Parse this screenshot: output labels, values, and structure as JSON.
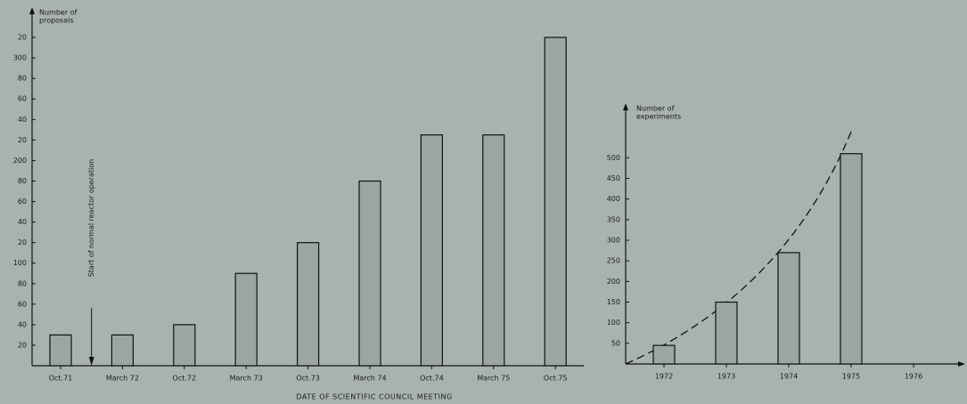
{
  "chart_data": [
    {
      "type": "bar",
      "y_label": [
        "Number of",
        "proposals"
      ],
      "x_label": "DATE OF SCIENTIFIC COUNCIL MEETING",
      "annotation": "Start of normal reactor operation",
      "categories": [
        "Oct.71",
        "March 72",
        "Oct.72",
        "March 73",
        "Oct.73",
        "March 74",
        "Oct.74",
        "March 75",
        "Oct.75"
      ],
      "values": [
        30,
        30,
        40,
        90,
        120,
        180,
        225,
        225,
        320
      ],
      "color": "#9ba6a1",
      "ylim": [
        0,
        340
      ],
      "yticks": [
        20,
        40,
        60,
        80,
        100,
        {
          "value": 120,
          "label": "20"
        },
        {
          "value": 140,
          "label": "40"
        },
        {
          "value": 160,
          "label": "60"
        },
        {
          "value": 180,
          "label": "80"
        },
        200,
        {
          "value": 220,
          "label": "20"
        },
        {
          "value": 240,
          "label": "40"
        },
        {
          "value": 260,
          "label": "60"
        },
        {
          "value": 280,
          "label": "80"
        },
        300,
        {
          "value": 320,
          "label": "20"
        }
      ]
    },
    {
      "type": "bar",
      "y_label": [
        "Number of",
        "experiments"
      ],
      "categories": [
        "1972",
        "1973",
        "1974",
        "1975",
        "1976"
      ],
      "values": [
        45,
        150,
        270,
        510,
        null
      ],
      "color": "#9ba6a1",
      "ylim": [
        0,
        600
      ],
      "yticks": [
        50,
        100,
        150,
        200,
        250,
        300,
        350,
        400,
        450,
        500
      ]
    }
  ]
}
